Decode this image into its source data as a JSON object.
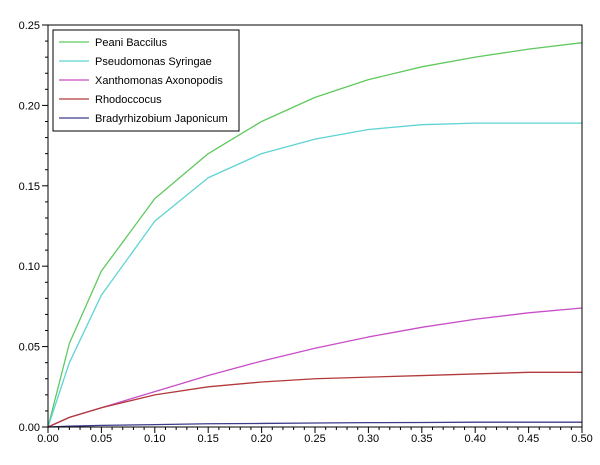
{
  "chart_data": {
    "type": "line",
    "title": "",
    "xlabel": "",
    "ylabel": "",
    "xlim": [
      0,
      0.5
    ],
    "ylim": [
      0,
      0.25
    ],
    "x_ticks": [
      "0.00",
      "0.05",
      "0.10",
      "0.15",
      "0.20",
      "0.25",
      "0.30",
      "0.35",
      "0.40",
      "0.45",
      "0.50"
    ],
    "y_ticks": [
      "0.00",
      "0.05",
      "0.10",
      "0.15",
      "0.20",
      "0.25"
    ],
    "grid": false,
    "legend_position": "top-left",
    "x": [
      0,
      0.02,
      0.05,
      0.1,
      0.15,
      0.2,
      0.25,
      0.3,
      0.35,
      0.4,
      0.45,
      0.5
    ],
    "series": [
      {
        "name": "Peani Baccilus",
        "color": "#5fc95f",
        "values": [
          0,
          0.052,
          0.097,
          0.142,
          0.17,
          0.19,
          0.205,
          0.216,
          0.224,
          0.23,
          0.235,
          0.239
        ]
      },
      {
        "name": "Pseudomonas Syringae",
        "color": "#5fd3d3",
        "values": [
          0,
          0.04,
          0.082,
          0.128,
          0.155,
          0.17,
          0.179,
          0.185,
          0.188,
          0.189,
          0.189,
          0.189
        ]
      },
      {
        "name": "Xanthomonas Axonopodis",
        "color": "#c84ec8",
        "values": [
          0,
          0.006,
          0.012,
          0.022,
          0.032,
          0.041,
          0.049,
          0.056,
          0.062,
          0.067,
          0.071,
          0.074
        ]
      },
      {
        "name": "Rhodoccocus",
        "color": "#b23a3a",
        "values": [
          0,
          0.006,
          0.012,
          0.02,
          0.025,
          0.028,
          0.03,
          0.031,
          0.032,
          0.033,
          0.034,
          0.034
        ]
      },
      {
        "name": "Bradyrhizobium Japonicum",
        "color": "#3c3c8c",
        "values": [
          0,
          0.0005,
          0.001,
          0.0015,
          0.002,
          0.0022,
          0.0025,
          0.0027,
          0.0028,
          0.003,
          0.003,
          0.003
        ]
      }
    ]
  }
}
